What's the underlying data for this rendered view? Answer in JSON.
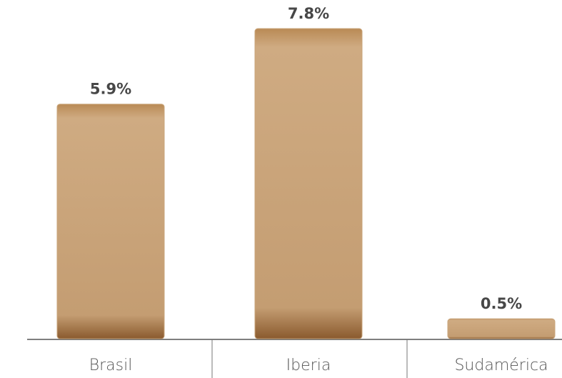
{
  "chart_data": {
    "type": "bar",
    "categories": [
      "Brasil",
      "Iberia",
      "Sudamérica"
    ],
    "values": [
      5.9,
      7.8,
      0.5
    ],
    "value_labels": [
      "5.9%",
      "7.8%",
      "0.5%"
    ],
    "color": "#c9a57b"
  }
}
